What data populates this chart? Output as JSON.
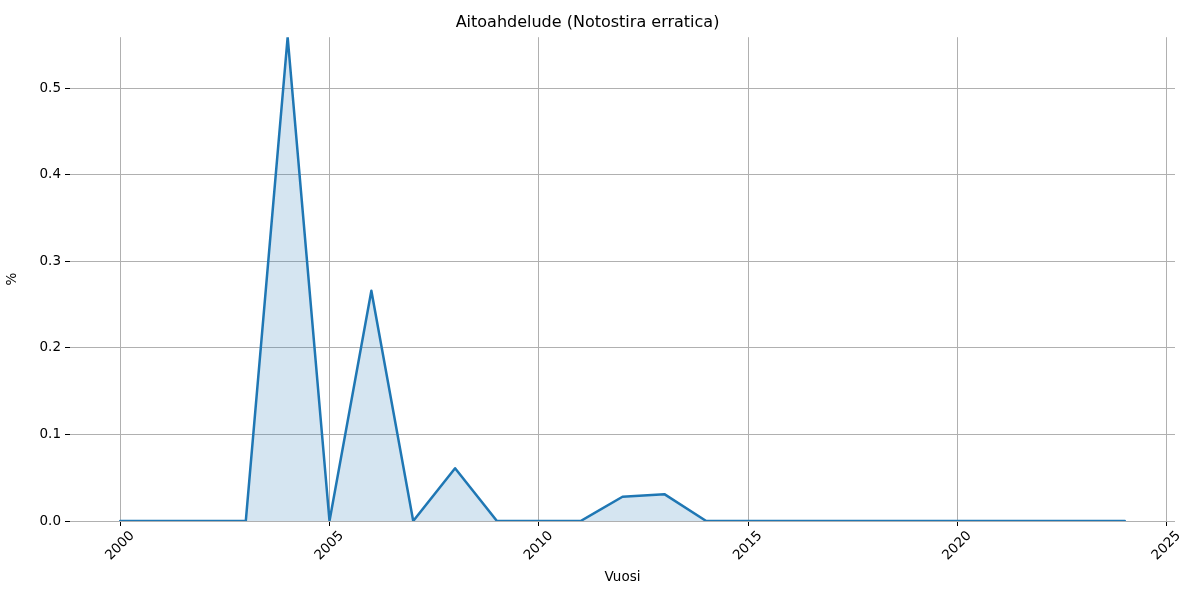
{
  "chart_data": {
    "type": "area",
    "title": "Aitoahdelude (Notostira erratica)",
    "xlabel": "Vuosi",
    "ylabel": "%",
    "x": [
      2000,
      2001,
      2002,
      2003,
      2004,
      2005,
      2006,
      2007,
      2008,
      2009,
      2010,
      2011,
      2012,
      2013,
      2014,
      2015,
      2016,
      2017,
      2018,
      2019,
      2020,
      2021,
      2022,
      2023,
      2024
    ],
    "series": [
      {
        "color": "#1f77b4",
        "values": [
          0,
          0,
          0,
          0,
          0.559,
          0,
          0.266,
          0,
          0.061,
          0,
          0,
          0,
          0.028,
          0.031,
          0,
          0,
          0,
          0,
          0,
          0,
          0,
          0,
          0,
          0,
          0
        ]
      }
    ],
    "xlim": [
      1998.8,
      2025.2
    ],
    "ylim": [
      0,
      0.559
    ],
    "xticks": [
      2000,
      2005,
      2010,
      2015,
      2020,
      2025
    ],
    "yticks": [
      {
        "value": 0,
        "label": "0.0"
      },
      0.1,
      0.2,
      0.3,
      0.4,
      0.5
    ],
    "grid": true
  }
}
